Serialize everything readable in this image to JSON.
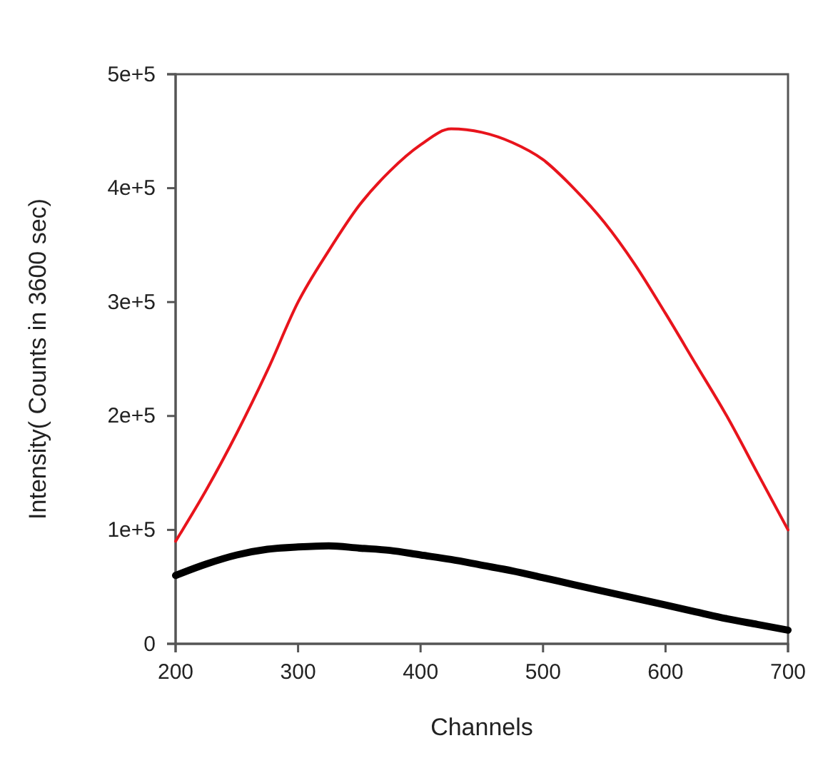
{
  "chart_data": {
    "type": "line",
    "xlabel": "Channels",
    "ylabel": "Intensity( Counts in 3600 sec)",
    "x": [
      200,
      225,
      250,
      275,
      300,
      325,
      350,
      375,
      400,
      425,
      450,
      475,
      500,
      525,
      550,
      575,
      600,
      625,
      650,
      675,
      700
    ],
    "series": [
      {
        "color": "#e8141c",
        "values": [
          90000,
          135000,
          185000,
          240000,
          300000,
          345000,
          385000,
          415000,
          438000,
          452000,
          449000,
          440000,
          425000,
          400000,
          370000,
          333000,
          290000,
          245000,
          200000,
          150000,
          100000
        ]
      },
      {
        "color": "#000000",
        "values": [
          60000,
          70000,
          78000,
          83000,
          85000,
          86000,
          84000,
          82000,
          78000,
          74000,
          69000,
          64000,
          58000,
          52000,
          46000,
          40000,
          34000,
          28000,
          22000,
          17000,
          12000
        ]
      }
    ],
    "xlim": [
      200,
      700
    ],
    "xticks": [
      200,
      300,
      400,
      500,
      600,
      700
    ],
    "ylim": [
      0,
      500000
    ],
    "yticks": [
      {
        "value": 0,
        "label": "0"
      },
      {
        "value": 100000,
        "label": "1e+5"
      },
      {
        "value": 200000,
        "label": "2e+5"
      },
      {
        "value": 300000,
        "label": "3e+5"
      },
      {
        "value": 400000,
        "label": "4e+5"
      },
      {
        "value": 500000,
        "label": "5e+5"
      }
    ],
    "grid": false,
    "marker": "none",
    "line_style": "solid"
  }
}
